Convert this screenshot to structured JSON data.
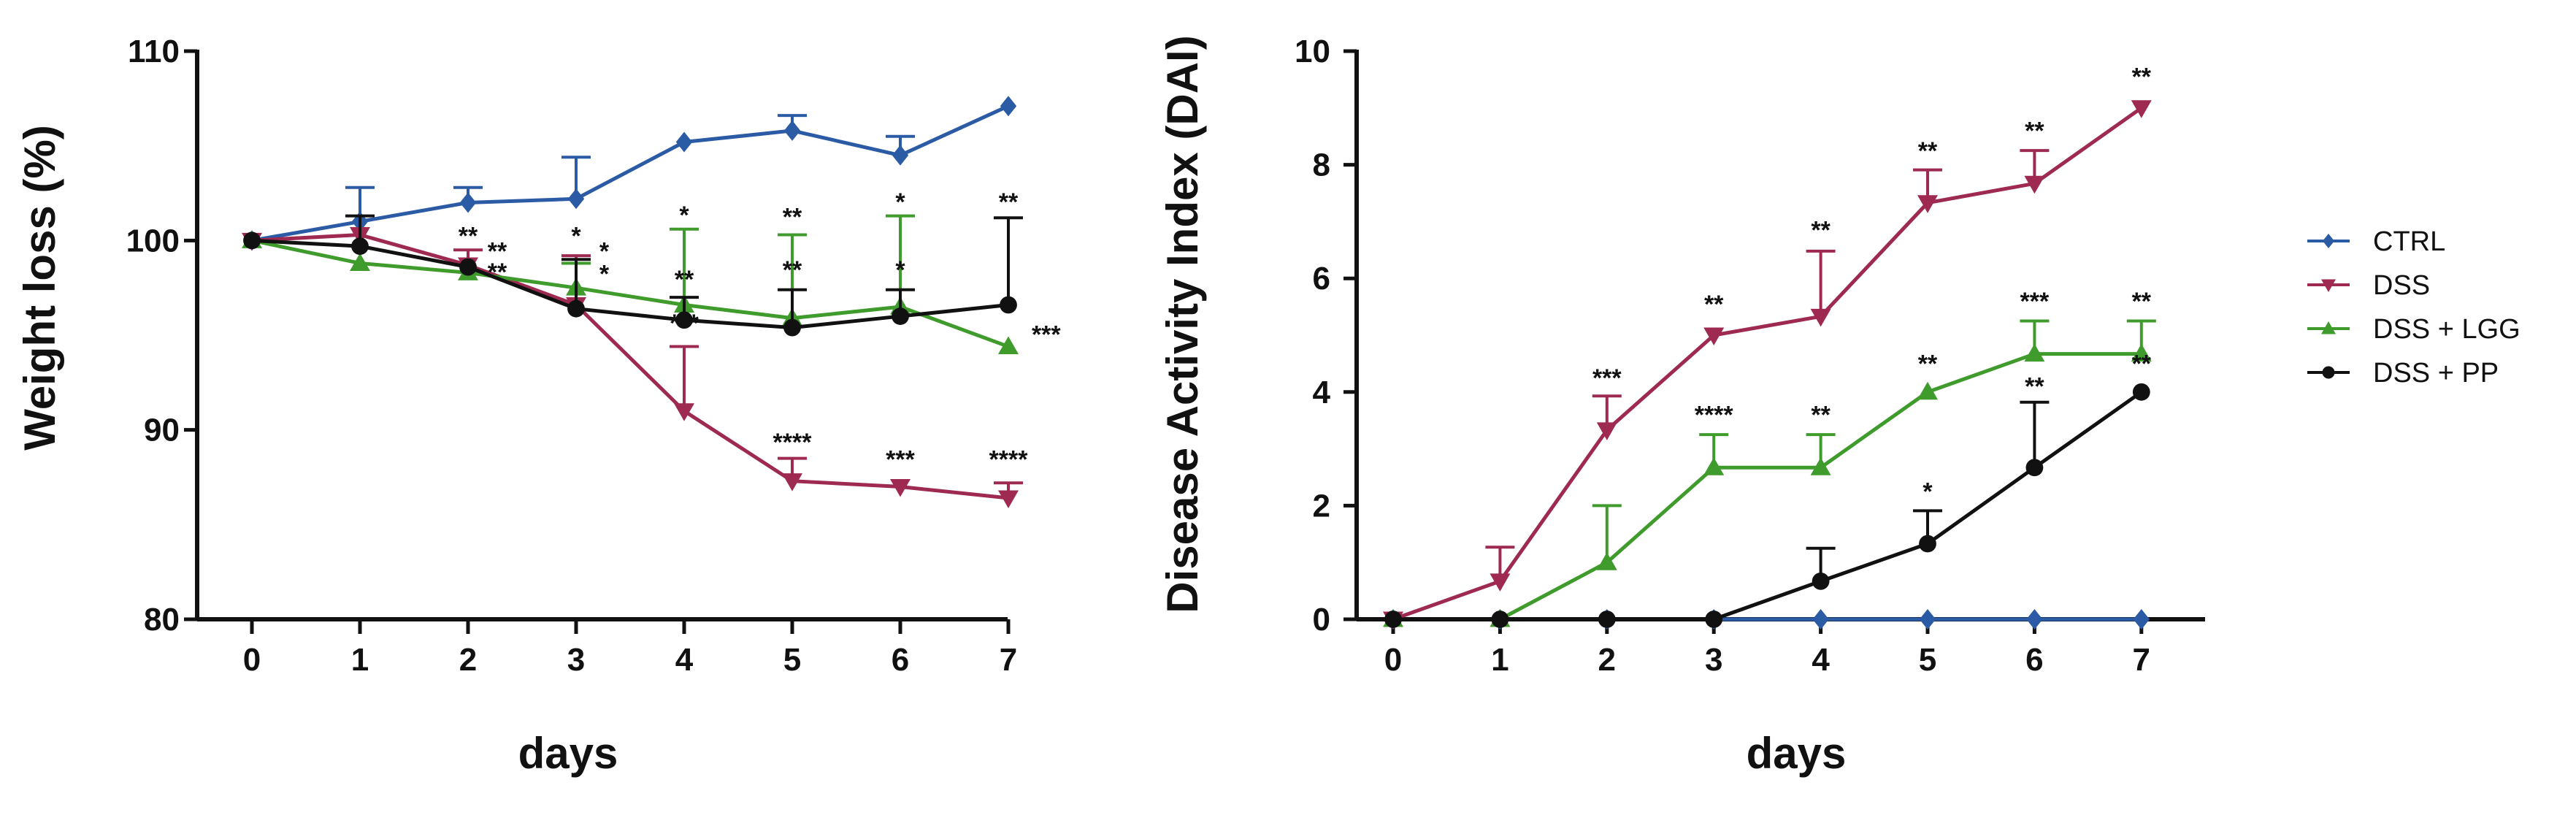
{
  "chart_data": [
    {
      "type": "line",
      "panel": "left",
      "title": "",
      "xlabel": "days",
      "ylabel": "Weight loss (%)",
      "xlim": [
        0,
        7
      ],
      "ylim": [
        80,
        110
      ],
      "xticks": [
        "0",
        "1",
        "2",
        "3",
        "4",
        "5",
        "6",
        "7"
      ],
      "yticks": [
        "80",
        "90",
        "100",
        "110"
      ],
      "x": [
        0,
        1,
        2,
        3,
        4,
        5,
        6,
        7
      ],
      "series": [
        {
          "name": "CTRL",
          "color": "#2c5ba5",
          "marker": "diamond",
          "values": [
            100,
            101,
            102,
            102.2,
            105.2,
            105.8,
            104.5,
            107.1
          ],
          "errors": [
            0,
            1.8,
            0.8,
            2.2,
            0,
            0.8,
            1.0,
            0
          ]
        },
        {
          "name": "DSS",
          "color": "#9e2a52",
          "marker": "triangle-down",
          "values": [
            100,
            100.3,
            98.7,
            96.6,
            91,
            87.3,
            87,
            86.4
          ],
          "errors": [
            0,
            0,
            0.8,
            2.6,
            3.4,
            1.2,
            0,
            0.8
          ]
        },
        {
          "name": "DSS + LGG",
          "color": "#3f9b2b",
          "marker": "triangle-up",
          "values": [
            100,
            98.8,
            98.3,
            97.5,
            96.6,
            95.9,
            96.5,
            94.4
          ],
          "errors": [
            0,
            0,
            0,
            1.3,
            4.0,
            4.4,
            4.8,
            0
          ]
        },
        {
          "name": "DSS + PP",
          "color": "#111111",
          "marker": "circle",
          "values": [
            100,
            99.7,
            98.6,
            96.4,
            95.8,
            95.4,
            96,
            96.6
          ],
          "errors": [
            0,
            1.6,
            0,
            2.6,
            1.2,
            2.0,
            1.4,
            4.6
          ]
        }
      ],
      "annotations": [
        {
          "x": 2,
          "y": 99.8,
          "text": "**"
        },
        {
          "x": 2.27,
          "y": 99.0,
          "text": "**"
        },
        {
          "x": 2.27,
          "y": 97.9,
          "text": "**"
        },
        {
          "x": 3,
          "y": 99.8,
          "text": "*"
        },
        {
          "x": 3.26,
          "y": 99.0,
          "text": "*"
        },
        {
          "x": 3.26,
          "y": 97.8,
          "text": "*"
        },
        {
          "x": 4,
          "y": 100.9,
          "text": "*"
        },
        {
          "x": 4,
          "y": 97.5,
          "text": "**"
        },
        {
          "x": 4,
          "y": 95.2,
          "text": "***"
        },
        {
          "x": 5,
          "y": 100.8,
          "text": "**"
        },
        {
          "x": 5,
          "y": 98.0,
          "text": "**"
        },
        {
          "x": 5,
          "y": 88.9,
          "text": "****"
        },
        {
          "x": 6,
          "y": 101.6,
          "text": "*"
        },
        {
          "x": 6,
          "y": 98.0,
          "text": "*"
        },
        {
          "x": 6,
          "y": 88.0,
          "text": "***"
        },
        {
          "x": 7,
          "y": 101.6,
          "text": "**"
        },
        {
          "x": 7,
          "y": 88.0,
          "text": "****"
        },
        {
          "x": 7.35,
          "y": 94.6,
          "text": "***"
        }
      ]
    },
    {
      "type": "line",
      "panel": "right",
      "title": "",
      "xlabel": "days",
      "ylabel": "Disease Activity Index (DAI)",
      "xlim": [
        0,
        7
      ],
      "ylim": [
        0,
        10
      ],
      "xticks": [
        "0",
        "1",
        "2",
        "3",
        "4",
        "5",
        "6",
        "7"
      ],
      "yticks": [
        "0",
        "2",
        "4",
        "6",
        "8",
        "10"
      ],
      "x": [
        0,
        1,
        2,
        3,
        4,
        5,
        6,
        7
      ],
      "series": [
        {
          "name": "CTRL",
          "color": "#2c5ba5",
          "marker": "diamond",
          "values": [
            0,
            0,
            0,
            0,
            0,
            0,
            0,
            0
          ],
          "errors": [
            0,
            0,
            0,
            0,
            0,
            0,
            0,
            0
          ]
        },
        {
          "name": "DSS",
          "color": "#9e2a52",
          "marker": "triangle-down",
          "values": [
            0,
            0.67,
            3.33,
            5,
            5.33,
            7.33,
            7.67,
            9
          ],
          "errors": [
            0,
            0.6,
            0.6,
            0,
            1.15,
            0.58,
            0.58,
            0
          ]
        },
        {
          "name": "DSS + LGG",
          "color": "#3f9b2b",
          "marker": "triangle-up",
          "values": [
            0,
            0,
            1,
            2.67,
            2.67,
            4,
            4.67,
            4.67
          ],
          "errors": [
            0,
            0,
            1.0,
            0.58,
            0.58,
            0,
            0.58,
            0.58
          ]
        },
        {
          "name": "DSS + PP",
          "color": "#111111",
          "marker": "circle",
          "values": [
            0,
            0,
            0,
            0,
            0.67,
            1.33,
            2.67,
            4
          ],
          "errors": [
            0,
            0,
            0,
            0,
            0.58,
            0.58,
            1.15,
            0
          ]
        }
      ],
      "annotations": [
        {
          "x": 2,
          "y": 4.1,
          "text": "***"
        },
        {
          "x": 3,
          "y": 5.4,
          "text": "**"
        },
        {
          "x": 3,
          "y": 3.45,
          "text": "****"
        },
        {
          "x": 4,
          "y": 6.7,
          "text": "**"
        },
        {
          "x": 4,
          "y": 3.45,
          "text": "**"
        },
        {
          "x": 5,
          "y": 8.1,
          "text": "**"
        },
        {
          "x": 5,
          "y": 4.35,
          "text": "**"
        },
        {
          "x": 5,
          "y": 2.1,
          "text": "*"
        },
        {
          "x": 6,
          "y": 8.45,
          "text": "**"
        },
        {
          "x": 6,
          "y": 5.45,
          "text": "***"
        },
        {
          "x": 6,
          "y": 3.95,
          "text": "**"
        },
        {
          "x": 7,
          "y": 9.4,
          "text": "**"
        },
        {
          "x": 7,
          "y": 5.45,
          "text": "**"
        },
        {
          "x": 7,
          "y": 4.35,
          "text": "**"
        }
      ]
    }
  ],
  "legend": {
    "placement": "right",
    "entries": [
      {
        "label": "CTRL",
        "color": "#2c5ba5",
        "marker": "diamond"
      },
      {
        "label": "DSS",
        "color": "#9e2a52",
        "marker": "triangle-down"
      },
      {
        "label": "DSS + LGG",
        "color": "#3f9b2b",
        "marker": "triangle-up"
      },
      {
        "label": "DSS + PP",
        "color": "#111111",
        "marker": "circle"
      }
    ]
  }
}
